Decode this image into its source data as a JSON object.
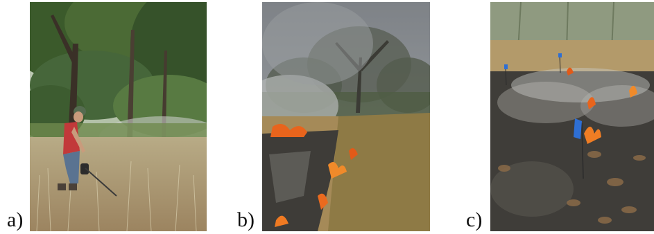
{
  "panels": [
    {
      "label": "a)"
    },
    {
      "label": "b)"
    },
    {
      "label": "c)"
    }
  ],
  "colors": {
    "forest_canopy": "#3f5a2e",
    "dry_grass": "#b39d72",
    "smoke": "#8e9296",
    "flame": "#e8641c",
    "ash": "#4a4844",
    "shirt": "#c2393a",
    "marker_flag": "#2e6fd4"
  }
}
